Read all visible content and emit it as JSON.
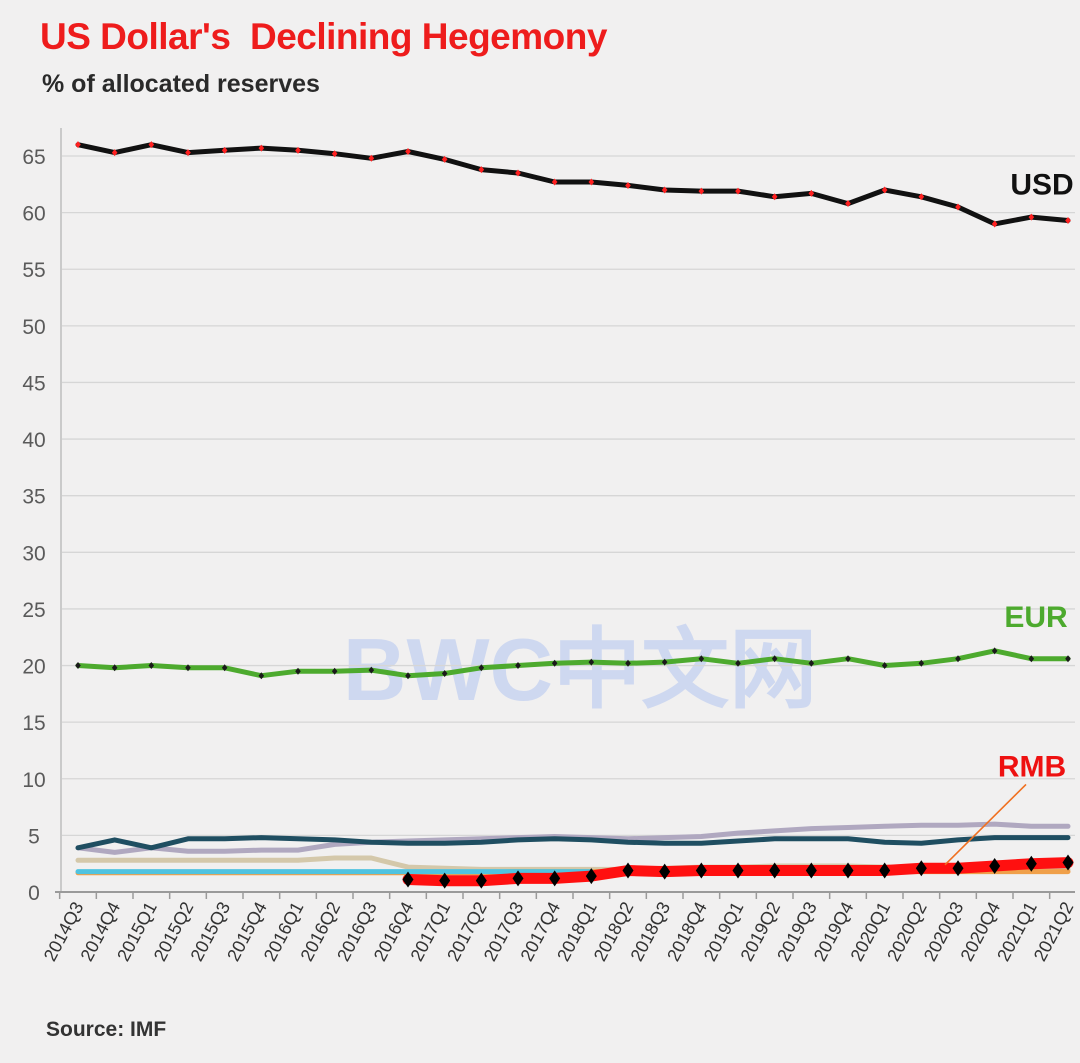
{
  "title": "US Dollar's  Declining Hegemony",
  "subtitle": "% of allocated reserves",
  "source": "Source: IMF",
  "watermark": "BWC中文网",
  "chart_data": {
    "type": "line",
    "title": "US Dollar's  Declining Hegemony",
    "ylabel": "% of allocated reserves",
    "xlabel": "",
    "ylim": [
      0,
      65
    ],
    "yticks": [
      0,
      5,
      10,
      15,
      20,
      25,
      30,
      35,
      40,
      45,
      50,
      55,
      60,
      65
    ],
    "grid": true,
    "x": [
      "2014Q3",
      "2014Q4",
      "2015Q1",
      "2015Q2",
      "2015Q3",
      "2015Q4",
      "2016Q1",
      "2016Q2",
      "2016Q3",
      "2016Q4",
      "2017Q1",
      "2017Q2",
      "2017Q3",
      "2017Q4",
      "2018Q1",
      "2018Q2",
      "2018Q3",
      "2018Q4",
      "2019Q1",
      "2019Q2",
      "2019Q3",
      "2019Q4",
      "2020Q1",
      "2020Q2",
      "2020Q3",
      "2020Q4",
      "2021Q1",
      "2021Q2"
    ],
    "series": [
      {
        "name": "USD",
        "color": "#111111",
        "marker_color": "#ff2020",
        "labeled": true,
        "values": [
          66.0,
          65.3,
          66.0,
          65.3,
          65.5,
          65.7,
          65.5,
          65.2,
          64.8,
          65.4,
          64.7,
          63.8,
          63.5,
          62.7,
          62.7,
          62.4,
          62.0,
          61.9,
          61.9,
          61.4,
          61.7,
          60.8,
          62.0,
          61.4,
          60.5,
          59.0,
          59.6,
          59.3
        ]
      },
      {
        "name": "EUR",
        "color": "#4daa2e",
        "marker_color": "#1a1a1a",
        "label_color": "#4daa2e",
        "labeled": true,
        "values": [
          20.0,
          19.8,
          20.0,
          19.8,
          19.8,
          19.1,
          19.5,
          19.5,
          19.6,
          19.1,
          19.3,
          19.8,
          20.0,
          20.2,
          20.3,
          20.2,
          20.3,
          20.6,
          20.2,
          20.6,
          20.2,
          20.6,
          20.0,
          20.2,
          20.6,
          21.3,
          20.6,
          20.6
        ]
      },
      {
        "color": "#b0a8c0",
        "values": [
          3.9,
          3.5,
          3.9,
          3.6,
          3.6,
          3.7,
          3.7,
          4.2,
          4.4,
          4.5,
          4.6,
          4.7,
          4.8,
          4.9,
          4.8,
          4.7,
          4.8,
          4.9,
          5.2,
          5.4,
          5.6,
          5.7,
          5.8,
          5.9,
          5.9,
          6.0,
          5.8,
          5.8
        ]
      },
      {
        "color": "#1f4e61",
        "values": [
          3.9,
          4.6,
          3.9,
          4.7,
          4.7,
          4.8,
          4.7,
          4.6,
          4.4,
          4.3,
          4.3,
          4.4,
          4.6,
          4.7,
          4.6,
          4.4,
          4.3,
          4.3,
          4.5,
          4.7,
          4.7,
          4.7,
          4.4,
          4.3,
          4.6,
          4.8,
          4.8,
          4.8
        ]
      },
      {
        "color": "#d4c8aa",
        "values": [
          2.8,
          2.8,
          2.8,
          2.8,
          2.8,
          2.8,
          2.8,
          3.0,
          3.0,
          2.2,
          2.1,
          2.0,
          2.0,
          2.0,
          2.0,
          2.0,
          2.1,
          2.2,
          2.2,
          2.3,
          2.3,
          2.3,
          2.2,
          2.2,
          2.3,
          2.1,
          2.1,
          2.0
        ]
      },
      {
        "color": "#f0a04a",
        "values": [
          1.7,
          1.7,
          1.7,
          1.7,
          1.7,
          1.7,
          1.7,
          1.7,
          1.7,
          1.7,
          1.7,
          1.7,
          1.8,
          1.8,
          1.8,
          1.8,
          1.8,
          1.8,
          1.8,
          1.8,
          1.8,
          1.8,
          1.8,
          1.8,
          1.8,
          1.8,
          1.8,
          1.8
        ]
      },
      {
        "color": "#4fc3e0",
        "values": [
          1.8,
          1.8,
          1.8,
          1.8,
          1.8,
          1.8,
          1.8,
          1.8,
          1.8,
          1.8,
          1.8,
          1.8,
          1.8,
          1.8,
          1.8,
          null,
          null,
          null,
          null,
          null,
          null,
          null,
          null,
          null,
          null,
          null,
          null,
          null
        ]
      },
      {
        "name": "RMB",
        "color": "#ff1010",
        "marker_color": "#000000",
        "label_color": "#ee1111",
        "labeled": true,
        "values": [
          null,
          null,
          null,
          null,
          null,
          null,
          null,
          null,
          null,
          1.1,
          1.0,
          1.0,
          1.2,
          1.2,
          1.4,
          1.9,
          1.8,
          1.9,
          1.9,
          1.9,
          1.9,
          1.9,
          1.9,
          2.1,
          2.1,
          2.3,
          2.5,
          2.6
        ]
      }
    ]
  }
}
